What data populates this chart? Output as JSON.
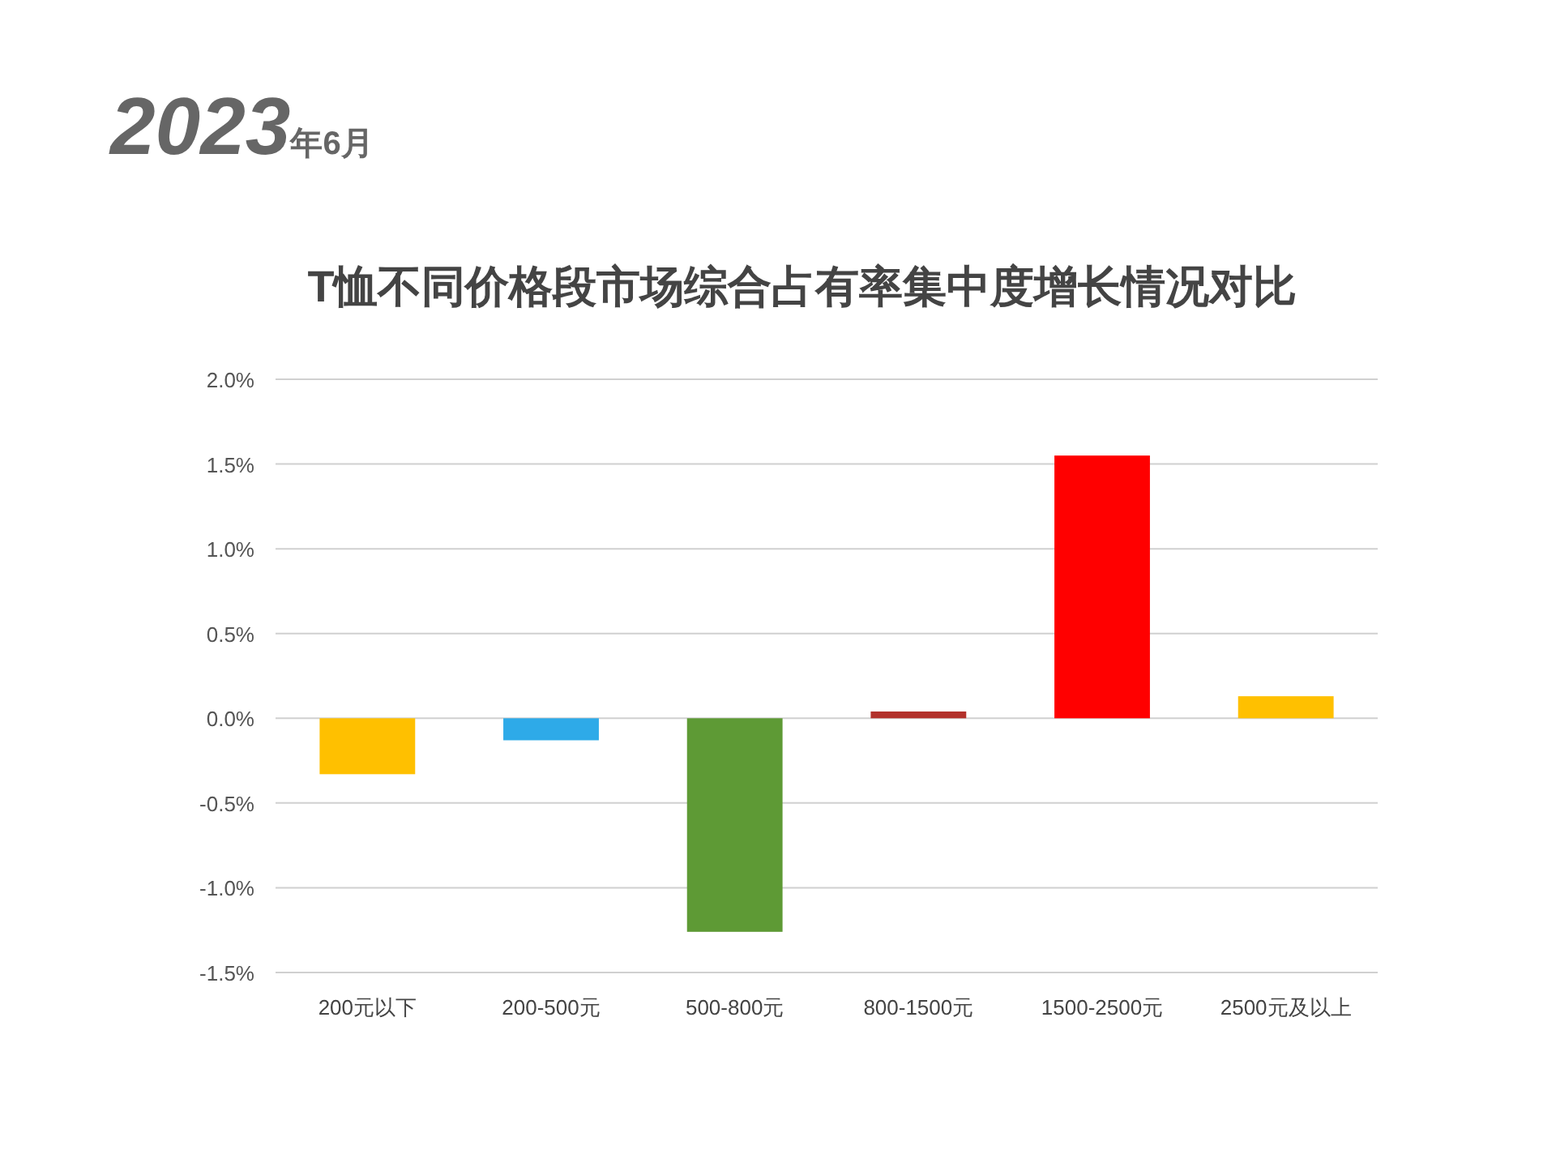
{
  "chart_data": {
    "type": "bar",
    "title": "T恤不同价格段市场综合占有率集中度增长情况对比",
    "subtitle": "2023年6月",
    "categories": [
      "200元以下",
      "200-500元",
      "500-800元",
      "800-1500元",
      "1500-2500元",
      "2500元及以上"
    ],
    "values": [
      -0.33,
      -0.13,
      -1.26,
      0.04,
      1.55,
      0.13
    ],
    "colors": [
      "#ffc000",
      "#2eaae8",
      "#5e9a35",
      "#b2312b",
      "#ff0000",
      "#ffc000"
    ],
    "ylim": [
      -1.5,
      2.0
    ],
    "yticks": [
      {
        "value": -1.5,
        "label": "-1.5%"
      },
      {
        "value": -1.0,
        "label": "-1.0%"
      },
      {
        "value": -0.5,
        "label": "-0.5%"
      },
      {
        "value": 0,
        "label": "0.0%"
      },
      {
        "value": 0.5,
        "label": "0.5%"
      },
      {
        "value": 1.0,
        "label": "1.0%"
      },
      {
        "value": 1.5,
        "label": "1.5%"
      },
      {
        "value": 2.0,
        "label": "2.0%"
      }
    ],
    "grid": "y"
  }
}
